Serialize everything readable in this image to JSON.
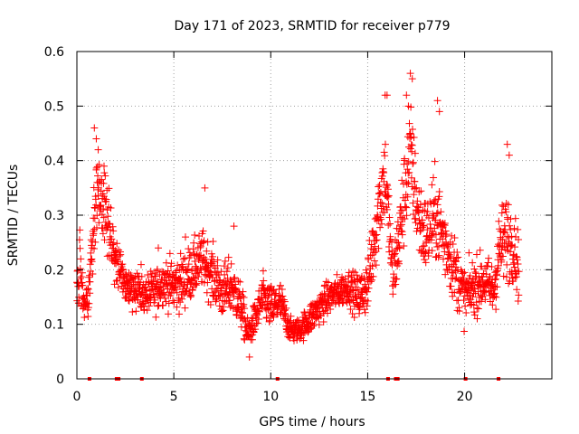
{
  "chart_data": {
    "type": "scatter",
    "title": "Day 171 of 2023, SRMTID for receiver p779",
    "xlabel": "GPS time / hours",
    "ylabel": "SRMTID / TECUs",
    "xlim": [
      0,
      24.5
    ],
    "ylim": [
      0,
      0.6
    ],
    "xticks": [
      0,
      5,
      10,
      15,
      20
    ],
    "yticks": [
      0,
      0.1,
      0.2,
      0.3,
      0.4,
      0.5,
      0.6
    ],
    "xtick_labels": [
      "0",
      "5",
      "10",
      "15",
      "20"
    ],
    "ytick_labels": [
      "0",
      "0.1",
      "0.2",
      "0.3",
      "0.4",
      "0.5",
      "0.6"
    ],
    "grid": true,
    "marker": "+",
    "color": "#ff0000",
    "series": [
      {
        "name": "SRMTID",
        "profile": [
          [
            0.0,
            0.16,
            0.06
          ],
          [
            0.15,
            0.2,
            0.07
          ],
          [
            0.4,
            0.12,
            0.03
          ],
          [
            0.7,
            0.18,
            0.05
          ],
          [
            1.0,
            0.36,
            0.08
          ],
          [
            1.3,
            0.32,
            0.06
          ],
          [
            1.6,
            0.3,
            0.07
          ],
          [
            1.9,
            0.22,
            0.05
          ],
          [
            2.2,
            0.2,
            0.05
          ],
          [
            2.6,
            0.17,
            0.04
          ],
          [
            3.0,
            0.17,
            0.04
          ],
          [
            3.5,
            0.15,
            0.04
          ],
          [
            4.0,
            0.16,
            0.04
          ],
          [
            4.5,
            0.18,
            0.04
          ],
          [
            5.0,
            0.17,
            0.05
          ],
          [
            5.5,
            0.18,
            0.05
          ],
          [
            6.0,
            0.2,
            0.05
          ],
          [
            6.5,
            0.22,
            0.05
          ],
          [
            7.0,
            0.19,
            0.05
          ],
          [
            7.5,
            0.16,
            0.05
          ],
          [
            8.0,
            0.17,
            0.05
          ],
          [
            8.5,
            0.13,
            0.04
          ],
          [
            8.8,
            0.08,
            0.03
          ],
          [
            9.2,
            0.11,
            0.03
          ],
          [
            9.6,
            0.15,
            0.04
          ],
          [
            10.0,
            0.13,
            0.04
          ],
          [
            10.5,
            0.14,
            0.04
          ],
          [
            11.0,
            0.09,
            0.02
          ],
          [
            11.5,
            0.09,
            0.02
          ],
          [
            12.0,
            0.11,
            0.03
          ],
          [
            12.5,
            0.13,
            0.03
          ],
          [
            13.0,
            0.15,
            0.03
          ],
          [
            13.5,
            0.16,
            0.03
          ],
          [
            14.0,
            0.17,
            0.03
          ],
          [
            14.5,
            0.15,
            0.04
          ],
          [
            15.0,
            0.17,
            0.05
          ],
          [
            15.5,
            0.3,
            0.08
          ],
          [
            15.9,
            0.38,
            0.08
          ],
          [
            16.3,
            0.18,
            0.05
          ],
          [
            16.7,
            0.28,
            0.08
          ],
          [
            17.2,
            0.42,
            0.09
          ],
          [
            17.6,
            0.3,
            0.08
          ],
          [
            18.0,
            0.26,
            0.07
          ],
          [
            18.5,
            0.3,
            0.08
          ],
          [
            19.0,
            0.25,
            0.07
          ],
          [
            19.5,
            0.2,
            0.06
          ],
          [
            20.0,
            0.15,
            0.05
          ],
          [
            20.5,
            0.17,
            0.05
          ],
          [
            21.0,
            0.18,
            0.05
          ],
          [
            21.5,
            0.16,
            0.05
          ],
          [
            21.8,
            0.24,
            0.07
          ],
          [
            22.2,
            0.26,
            0.08
          ],
          [
            22.6,
            0.24,
            0.06
          ],
          [
            22.8,
            0.2,
            0.06
          ]
        ],
        "peaks": [
          [
            0.9,
            0.46
          ],
          [
            1.0,
            0.44
          ],
          [
            1.1,
            0.42
          ],
          [
            1.4,
            0.39
          ],
          [
            4.2,
            0.24
          ],
          [
            5.6,
            0.26
          ],
          [
            6.6,
            0.35
          ],
          [
            8.1,
            0.28
          ],
          [
            15.9,
            0.52
          ],
          [
            16.0,
            0.52
          ],
          [
            17.0,
            0.52
          ],
          [
            17.1,
            0.5
          ],
          [
            17.2,
            0.56
          ],
          [
            17.3,
            0.55
          ],
          [
            18.6,
            0.51
          ],
          [
            18.7,
            0.49
          ],
          [
            22.2,
            0.43
          ],
          [
            22.3,
            0.41
          ],
          [
            8.9,
            0.04
          ],
          [
            11.2,
            0.07
          ]
        ]
      }
    ],
    "zero_markers_x": [
      0.65,
      2.05,
      2.15,
      3.35,
      10.35,
      16.05,
      16.45,
      16.55,
      20.05,
      21.75
    ]
  }
}
